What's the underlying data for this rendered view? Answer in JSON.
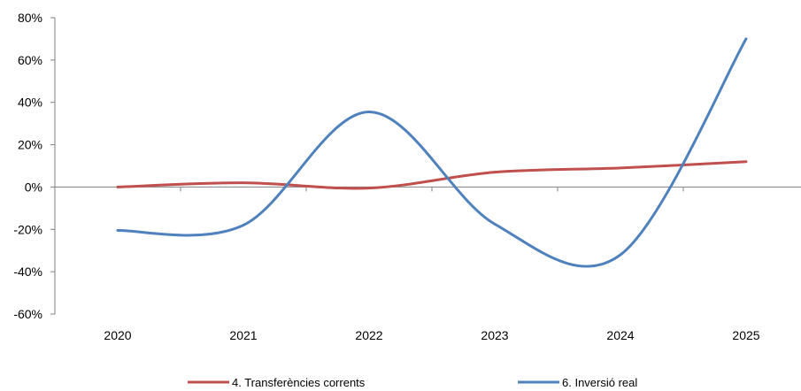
{
  "chart_data": {
    "type": "line",
    "title": "",
    "xlabel": "",
    "ylabel": "",
    "categories": [
      "2020",
      "2021",
      "2022",
      "2023",
      "2024",
      "2025"
    ],
    "series": [
      {
        "name": "4. Transferències corrents",
        "color": "#c0504d",
        "values": [
          0.0,
          2.0,
          -0.5,
          7.0,
          9.0,
          12.0
        ]
      },
      {
        "name": "6. Inversió real",
        "color": "#4f81bd",
        "values": [
          -20.5,
          -18.0,
          35.5,
          -17.5,
          -32.0,
          70.0
        ]
      }
    ],
    "ylim": [
      -60,
      80
    ],
    "yticks": [
      -60,
      -40,
      -20,
      0,
      20,
      40,
      60,
      80
    ],
    "ytick_labels": [
      "-60%",
      "-40%",
      "-20%",
      "0%",
      "20%",
      "40%",
      "60%",
      "80%"
    ],
    "grid": false,
    "smooth": true,
    "legend_position": "bottom"
  }
}
